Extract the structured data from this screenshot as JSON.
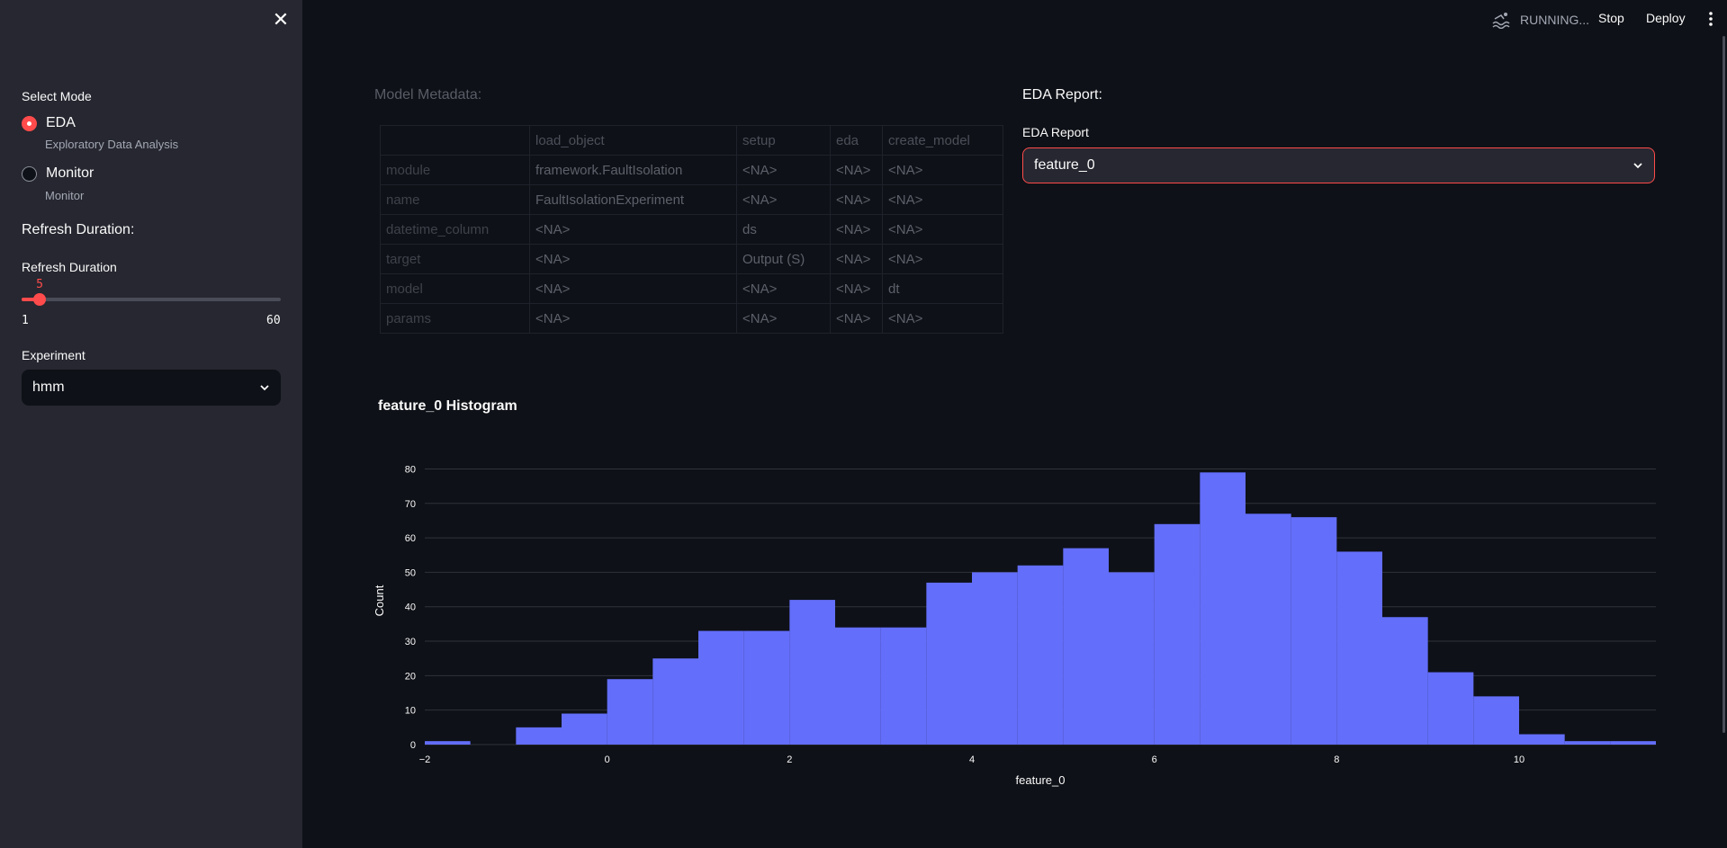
{
  "sidebar": {
    "mode_label": "Select Mode",
    "modes": [
      {
        "label": "EDA",
        "caption": "Exploratory Data Analysis",
        "selected": true
      },
      {
        "label": "Monitor",
        "caption": "Monitor",
        "selected": false
      }
    ],
    "refresh_heading": "Refresh Duration:",
    "refresh_label": "Refresh Duration",
    "refresh": {
      "value": "5",
      "min": "1",
      "max": "60"
    },
    "experiment_label": "Experiment",
    "experiment_value": "hmm"
  },
  "topbar": {
    "status": "RUNNING...",
    "stop_label": "Stop",
    "deploy_label": "Deploy"
  },
  "metadata": {
    "title": "Model Metadata:",
    "columns": [
      "",
      "load_object",
      "setup",
      "eda",
      "create_model"
    ],
    "rows": [
      [
        "module",
        "framework.FaultIsolation",
        "<NA>",
        "<NA>",
        "<NA>"
      ],
      [
        "name",
        "FaultIsolationExperiment",
        "<NA>",
        "<NA>",
        "<NA>"
      ],
      [
        "datetime_column",
        "<NA>",
        "ds",
        "<NA>",
        "<NA>"
      ],
      [
        "target",
        "<NA>",
        "Output (S)",
        "<NA>",
        "<NA>"
      ],
      [
        "model",
        "<NA>",
        "<NA>",
        "<NA>",
        "dt"
      ],
      [
        "params",
        "<NA>",
        "<NA>",
        "<NA>",
        "<NA>"
      ]
    ]
  },
  "eda": {
    "title": "EDA Report:",
    "select_label": "EDA Report",
    "select_value": "feature_0"
  },
  "chart_title": "feature_0 Histogram",
  "colors": {
    "accent": "#ff4b4b",
    "bar": "#636efa"
  },
  "chart_data": {
    "type": "bar",
    "title": "feature_0 Histogram",
    "xlabel": "feature_0",
    "ylabel": "Count",
    "bin_width": 0.5,
    "bin_starts": [
      -2,
      -1.5,
      -1,
      -0.5,
      0,
      0.5,
      1,
      1.5,
      2,
      2.5,
      3,
      3.5,
      4,
      4.5,
      5,
      5.5,
      6,
      6.5,
      7,
      7.5,
      8,
      8.5,
      9,
      9.5,
      10,
      10.5,
      11
    ],
    "values": [
      1,
      0,
      5,
      9,
      19,
      25,
      33,
      33,
      42,
      34,
      34,
      47,
      50,
      52,
      57,
      50,
      64,
      79,
      67,
      66,
      56,
      37,
      21,
      14,
      3,
      1,
      1
    ],
    "xlim": [
      -2,
      11.5
    ],
    "ylim": [
      0,
      83
    ],
    "x_ticks": [
      "−2",
      "0",
      "2",
      "4",
      "6",
      "8",
      "10"
    ],
    "y_ticks": [
      "0",
      "10",
      "20",
      "30",
      "40",
      "50",
      "60",
      "70",
      "80"
    ],
    "grid": true
  }
}
